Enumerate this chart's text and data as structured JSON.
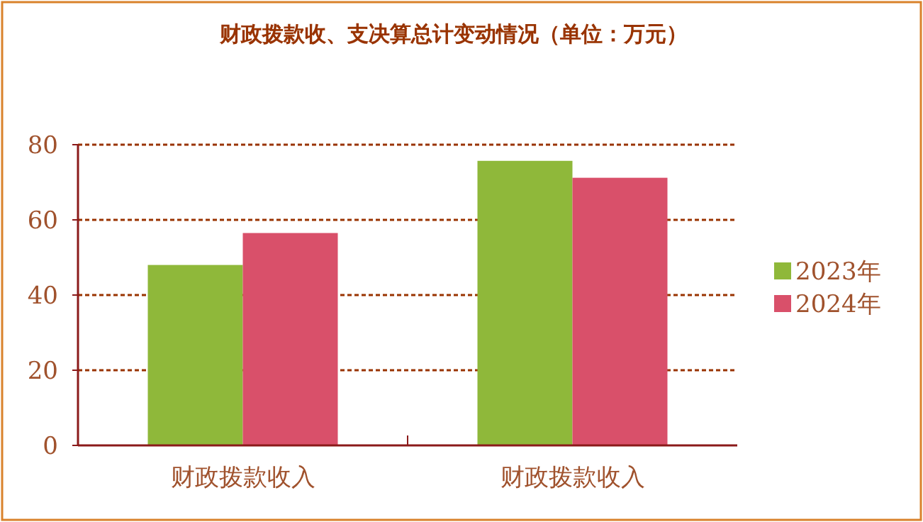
{
  "chart_data": {
    "type": "bar",
    "title": "财政拨款收、支决算总计变动情况（单位：万元）",
    "categories": [
      "财政拨款收入",
      "财政拨款收入"
    ],
    "series": [
      {
        "name": "2023年",
        "color": "#8fb83a",
        "values": [
          48,
          75.7
        ]
      },
      {
        "name": "2024年",
        "color": "#d9506a",
        "values": [
          56.5,
          71.2
        ]
      }
    ],
    "ylim": [
      0,
      80
    ],
    "yticks": [
      0,
      20,
      40,
      60,
      80
    ],
    "grid": "y",
    "legend": "right"
  }
}
